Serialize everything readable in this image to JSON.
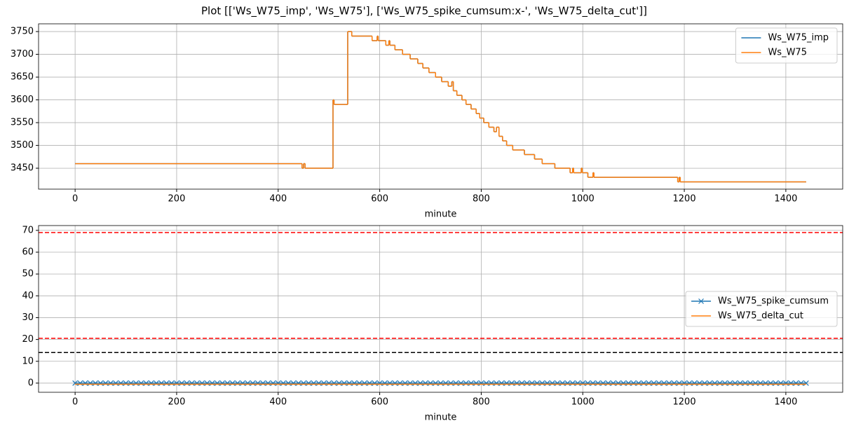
{
  "title": "Plot [['Ws_W75_imp', 'Ws_W75'], ['Ws_W75_spike_cumsum:x-', 'Ws_W75_delta_cut']]",
  "chart_data": [
    {
      "type": "line",
      "step": "post",
      "xlabel": "minute",
      "grid": true,
      "legend": "upper right",
      "xlim": [
        -72,
        1512
      ],
      "ylim": [
        3404,
        3767
      ],
      "xticks": [
        0,
        200,
        400,
        600,
        800,
        1000,
        1200,
        1400
      ],
      "yticks": [
        3450,
        3500,
        3550,
        3600,
        3650,
        3700,
        3750
      ],
      "x": [
        0,
        447,
        450,
        453,
        508,
        510,
        537,
        545,
        585,
        595,
        597,
        612,
        618,
        620,
        630,
        645,
        660,
        675,
        685,
        697,
        710,
        722,
        735,
        742,
        745,
        752,
        762,
        770,
        780,
        790,
        797,
        805,
        815,
        825,
        830,
        835,
        842,
        850,
        862,
        885,
        905,
        920,
        945,
        975,
        980,
        982,
        997,
        999,
        1010,
        1020,
        1022,
        1187,
        1190,
        1192,
        1440
      ],
      "series": [
        {
          "name": "Ws_W75_imp",
          "color": "#1f77b4",
          "values": [
            3460,
            3450,
            3460,
            3450,
            3600,
            3590,
            3750,
            3740,
            3730,
            3740,
            3730,
            3720,
            3730,
            3720,
            3710,
            3700,
            3690,
            3680,
            3670,
            3660,
            3650,
            3640,
            3630,
            3640,
            3620,
            3610,
            3600,
            3590,
            3580,
            3570,
            3560,
            3550,
            3540,
            3530,
            3540,
            3520,
            3510,
            3500,
            3490,
            3480,
            3470,
            3460,
            3450,
            3440,
            3450,
            3440,
            3450,
            3440,
            3430,
            3440,
            3430,
            3420,
            3430,
            3420,
            3420
          ]
        },
        {
          "name": "Ws_W75",
          "color": "#ff7f0e",
          "values": [
            3460,
            3450,
            3460,
            3450,
            3600,
            3590,
            3750,
            3740,
            3730,
            3740,
            3730,
            3720,
            3730,
            3720,
            3710,
            3700,
            3690,
            3680,
            3670,
            3660,
            3650,
            3640,
            3630,
            3640,
            3620,
            3610,
            3600,
            3590,
            3580,
            3570,
            3560,
            3550,
            3540,
            3530,
            3540,
            3520,
            3510,
            3500,
            3490,
            3480,
            3470,
            3460,
            3450,
            3440,
            3450,
            3440,
            3450,
            3440,
            3430,
            3440,
            3430,
            3420,
            3430,
            3420,
            3420
          ]
        }
      ]
    },
    {
      "type": "line",
      "xlabel": "minute",
      "grid": true,
      "legend": "center right",
      "xlim": [
        -72,
        1512
      ],
      "ylim": [
        -4.2,
        72.2
      ],
      "xticks": [
        0,
        200,
        400,
        600,
        800,
        1000,
        1200,
        1400
      ],
      "yticks": [
        0,
        10,
        20,
        30,
        40,
        50,
        60,
        70
      ],
      "hlines": [
        {
          "value": 69,
          "color": "#ff0000"
        },
        {
          "value": 20.5,
          "color": "#ff0000"
        },
        {
          "value": 14,
          "color": "#000000"
        }
      ],
      "series": [
        {
          "name": "Ws_W75_spike_cumsum",
          "color": "#1f77b4",
          "marker": "x",
          "x": [
            0,
            10,
            20,
            30,
            40,
            50,
            60,
            70,
            80,
            90,
            100,
            110,
            120,
            130,
            140,
            150,
            160,
            170,
            180,
            190,
            200,
            210,
            220,
            230,
            240,
            250,
            260,
            270,
            280,
            290,
            300,
            310,
            320,
            330,
            340,
            350,
            360,
            370,
            380,
            390,
            400,
            410,
            420,
            430,
            440,
            450,
            460,
            470,
            480,
            490,
            500,
            510,
            520,
            530,
            540,
            550,
            560,
            570,
            580,
            590,
            600,
            610,
            620,
            630,
            640,
            650,
            660,
            670,
            680,
            690,
            700,
            710,
            720,
            730,
            740,
            750,
            760,
            770,
            780,
            790,
            800,
            810,
            820,
            830,
            840,
            850,
            860,
            870,
            880,
            890,
            900,
            910,
            920,
            930,
            940,
            950,
            960,
            970,
            980,
            990,
            1000,
            1010,
            1020,
            1030,
            1040,
            1050,
            1060,
            1070,
            1080,
            1090,
            1100,
            1110,
            1120,
            1130,
            1140,
            1150,
            1160,
            1170,
            1180,
            1190,
            1200,
            1210,
            1220,
            1230,
            1240,
            1250,
            1260,
            1270,
            1280,
            1290,
            1300,
            1310,
            1320,
            1330,
            1340,
            1350,
            1360,
            1370,
            1380,
            1390,
            1400,
            1410,
            1420,
            1430,
            1440
          ],
          "values": [
            0,
            0,
            0,
            0,
            0,
            0,
            0,
            0,
            0,
            0,
            0,
            0,
            0,
            0,
            0,
            0,
            0,
            0,
            0,
            0,
            0,
            0,
            0,
            0,
            0,
            0,
            0,
            0,
            0,
            0,
            0,
            0,
            0,
            0,
            0,
            0,
            0,
            0,
            0,
            0,
            0,
            0,
            0,
            0,
            0,
            0,
            0,
            0,
            0,
            0,
            0,
            0,
            0,
            0,
            0,
            0,
            0,
            0,
            0,
            0,
            0,
            0,
            0,
            0,
            0,
            0,
            0,
            0,
            0,
            0,
            0,
            0,
            0,
            0,
            0,
            0,
            0,
            0,
            0,
            0,
            0,
            0,
            0,
            0,
            0,
            0,
            0,
            0,
            0,
            0,
            0,
            0,
            0,
            0,
            0,
            0,
            0,
            0,
            0,
            0,
            0,
            0,
            0,
            0,
            0,
            0,
            0,
            0,
            0,
            0,
            0,
            0,
            0,
            0,
            0,
            0,
            0,
            0,
            0,
            0,
            0,
            0,
            0,
            0,
            0,
            0,
            0,
            0,
            0,
            0,
            0,
            0,
            0,
            0,
            0,
            0,
            0,
            0,
            0,
            0,
            0,
            0,
            0,
            0,
            0
          ]
        },
        {
          "name": "Ws_W75_delta_cut",
          "color": "#ff7f0e",
          "x": [
            0,
            1440
          ],
          "values": [
            -0.5,
            -0.5
          ]
        }
      ]
    }
  ]
}
